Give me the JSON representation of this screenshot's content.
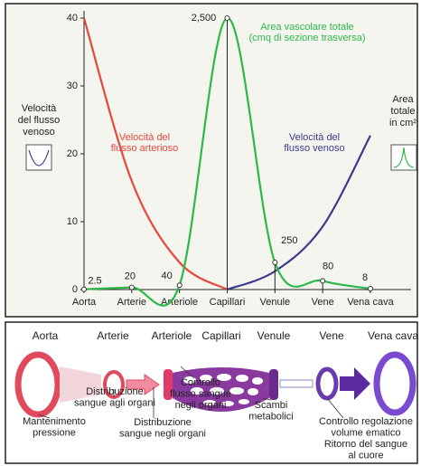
{
  "chart_data": {
    "type": "line",
    "categories": [
      "Aorta",
      "Arterie",
      "Arteriole",
      "Capillari",
      "Venule",
      "Vene",
      "Vena cava"
    ],
    "ylim": [
      0,
      40
    ],
    "yticks": [
      0,
      10,
      20,
      30,
      40
    ],
    "y2lim": [
      0,
      2500
    ],
    "series": [
      {
        "label": [
          "Velocità del",
          "flusso arterioso"
        ],
        "color": "#e8463c",
        "values": [
          40,
          16,
          4,
          0,
          null,
          null,
          null
        ]
      },
      {
        "label": [
          "Velocità del",
          "flusso venoso"
        ],
        "color": "#3b3a8e",
        "values": [
          null,
          null,
          null,
          0,
          2.7,
          9.3,
          22.7
        ]
      },
      {
        "label": [
          "Area vascolare totale",
          "(cmq di sezione trasversa)"
        ],
        "color": "#2db84a",
        "axis": "y2",
        "markers": true,
        "values": [
          2.5,
          20,
          40,
          2500,
          250,
          80,
          8
        ],
        "value_labels": [
          "2.5",
          "20",
          "40",
          "2,500",
          "250",
          "80",
          "8"
        ]
      }
    ],
    "side_labels": {
      "left": [
        "Velocità",
        "del flusso",
        "venoso"
      ],
      "right": [
        "Area",
        "totale",
        "in cm²"
      ]
    }
  },
  "diagram": {
    "vessels": [
      "Aorta",
      "Arterie",
      "Arteriole",
      "Capillari",
      "Venule",
      "Vene",
      "Vena cava"
    ],
    "functions": [
      {
        "lines": [
          "Mantenimento",
          "pressione"
        ]
      },
      {
        "lines": [
          "Distribuzione",
          "sangue agli organi"
        ]
      },
      {
        "lines": [
          "Distribuzione",
          "sangue negli organi"
        ]
      },
      {
        "lines": [
          "Controllo",
          "flusso sangue",
          "negli organi"
        ]
      },
      {
        "lines": [
          "Scambi",
          "metabolici"
        ]
      },
      {
        "lines": [
          "Controllo regolazione",
          "volume ematico",
          "Ritorno del sangue",
          "al cuore"
        ]
      }
    ]
  }
}
